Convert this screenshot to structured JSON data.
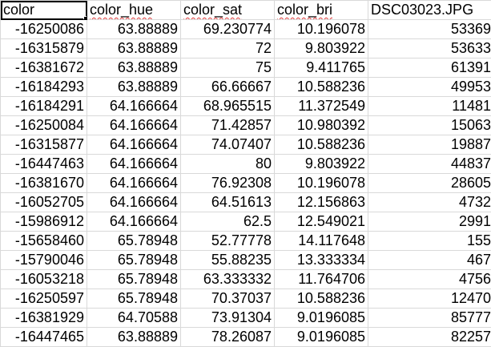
{
  "headers": [
    "color",
    "color_hue",
    "color_sat",
    "color_bri",
    "DSC03023.JPG"
  ],
  "rows": [
    [
      "-16250086",
      "63.88889",
      "69.230774",
      "10.196078",
      "53369"
    ],
    [
      "-16315879",
      "63.88889",
      "72",
      "9.803922",
      "53633"
    ],
    [
      "-16381672",
      "63.88889",
      "75",
      "9.411765",
      "61391"
    ],
    [
      "-16184293",
      "63.88889",
      "66.66667",
      "10.588236",
      "49953"
    ],
    [
      "-16184291",
      "64.166664",
      "68.965515",
      "11.372549",
      "11481"
    ],
    [
      "-16250084",
      "64.166664",
      "71.42857",
      "10.980392",
      "15063"
    ],
    [
      "-16315877",
      "64.166664",
      "74.07407",
      "10.588236",
      "19887"
    ],
    [
      "-16447463",
      "64.166664",
      "80",
      "9.803922",
      "44837"
    ],
    [
      "-16381670",
      "64.166664",
      "76.92308",
      "10.196078",
      "28605"
    ],
    [
      "-16052705",
      "64.166664",
      "64.51613",
      "12.156863",
      "4732"
    ],
    [
      "-15986912",
      "64.166664",
      "62.5",
      "12.549021",
      "2991"
    ],
    [
      "-15658460",
      "65.78948",
      "52.77778",
      "14.117648",
      "155"
    ],
    [
      "-15790046",
      "65.78948",
      "55.88235",
      "13.333334",
      "467"
    ],
    [
      "-16053218",
      "65.78948",
      "63.333332",
      "11.764706",
      "4756"
    ],
    [
      "-16250597",
      "65.78948",
      "70.37037",
      "10.588236",
      "12470"
    ],
    [
      "-16381929",
      "64.70588",
      "73.91304",
      "9.0196085",
      "85777"
    ],
    [
      "-16447465",
      "63.88889",
      "78.26087",
      "9.0196085",
      "82257"
    ]
  ],
  "colors": {
    "gridline": "#d9d9d9",
    "selection": "#000000",
    "spellcheck": "#e03a3a"
  }
}
